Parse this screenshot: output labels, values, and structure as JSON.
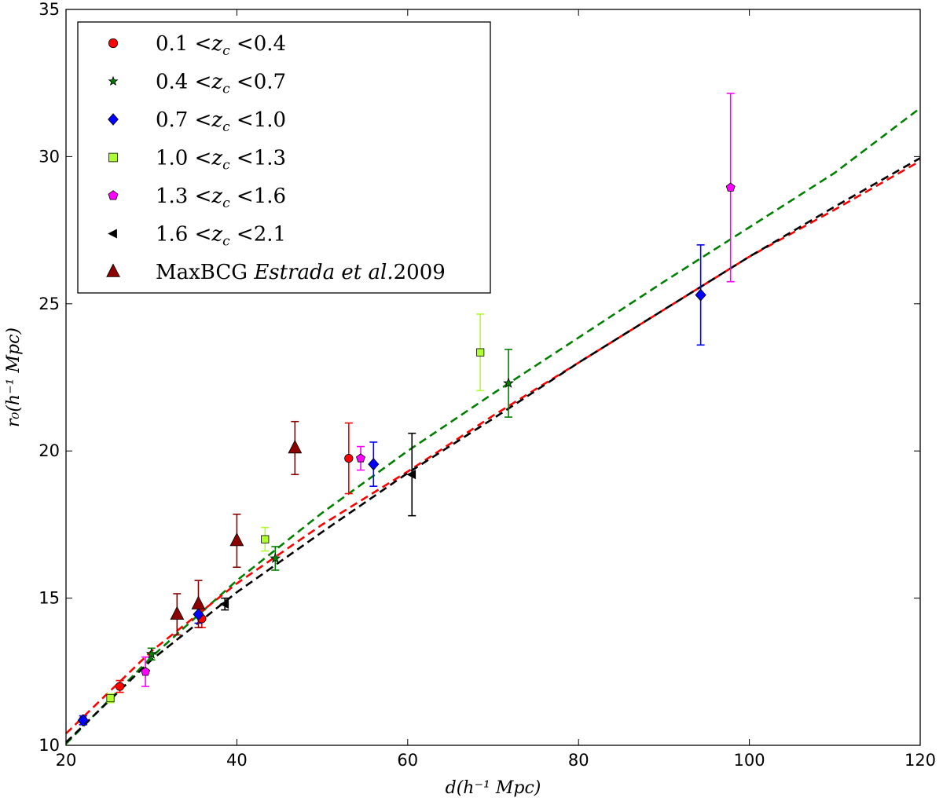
{
  "chart_data": {
    "type": "scatter",
    "title": "",
    "xlabel": "d(h⁻¹ Mpc)",
    "ylabel": "r₀(h⁻¹ Mpc)",
    "xlim": [
      20,
      120
    ],
    "ylim": [
      10,
      35
    ],
    "x_ticks": [
      20,
      40,
      60,
      80,
      100,
      120
    ],
    "y_ticks": [
      10,
      15,
      20,
      25,
      30,
      35
    ],
    "grid": false,
    "legend_position": "top-left",
    "series": [
      {
        "name": "0.1<z_c<0.4",
        "legend_parts": [
          "0.1 <",
          "z",
          "c",
          " <0.4"
        ],
        "marker": "circle",
        "color": "#ff0000",
        "points": [
          {
            "x": 22.0,
            "y": 10.85,
            "err": 0.15
          },
          {
            "x": 26.3,
            "y": 12.0,
            "err": 0.2
          },
          {
            "x": 35.9,
            "y": 14.3,
            "err": 0.3
          },
          {
            "x": 53.1,
            "y": 19.75,
            "err": 1.2
          }
        ]
      },
      {
        "name": "0.4<z_c<0.7",
        "legend_parts": [
          "0.4 <",
          "z",
          "c",
          " <0.7"
        ],
        "marker": "star",
        "color": "#008000",
        "points": [
          {
            "x": 30.0,
            "y": 13.1,
            "err": 0.2
          },
          {
            "x": 44.5,
            "y": 16.35,
            "err": 0.4
          },
          {
            "x": 71.8,
            "y": 22.3,
            "err": 1.15
          }
        ]
      },
      {
        "name": "0.7<z_c<1.0",
        "legend_parts": [
          "0.7 <",
          "z",
          "c",
          " <1.0"
        ],
        "marker": "diamond",
        "color": "#0000ff",
        "points": [
          {
            "x": 22.0,
            "y": 10.85,
            "err": 0.15
          },
          {
            "x": 35.5,
            "y": 14.45,
            "err": 0.3
          },
          {
            "x": 56.0,
            "y": 19.55,
            "err": 0.75
          },
          {
            "x": 94.3,
            "y": 25.3,
            "err": 1.7
          }
        ]
      },
      {
        "name": "1.0<z_c<1.3",
        "legend_parts": [
          "1.0 <",
          "z",
          "c",
          " <1.3"
        ],
        "marker": "square",
        "color": "#adff2f",
        "points": [
          {
            "x": 25.2,
            "y": 11.6,
            "err": 0.15
          },
          {
            "x": 43.3,
            "y": 17.0,
            "err": 0.4
          },
          {
            "x": 68.5,
            "y": 23.35,
            "err": 1.3
          }
        ]
      },
      {
        "name": "1.3<z_c<1.6",
        "legend_parts": [
          "1.3 <",
          "z",
          "c",
          " <1.6"
        ],
        "marker": "pentagon",
        "color": "#ff00ff",
        "points": [
          {
            "x": 29.3,
            "y": 12.5,
            "err": 0.5
          },
          {
            "x": 54.5,
            "y": 19.75,
            "err": 0.4
          },
          {
            "x": 97.8,
            "y": 28.95,
            "err": 3.2
          }
        ]
      },
      {
        "name": "1.6<z_c<2.1",
        "legend_parts": [
          "1.6 <",
          "z",
          "c",
          " <2.1"
        ],
        "marker": "triangle-left",
        "color": "#000000",
        "points": [
          {
            "x": 38.6,
            "y": 14.8,
            "err": 0.2
          },
          {
            "x": 60.5,
            "y": 19.2,
            "err": 1.4
          }
        ]
      },
      {
        "name": "MaxBCG Estrada et al.2009",
        "legend_parts": [
          "MaxBCG ",
          "Estrada et al.",
          "",
          "2009"
        ],
        "marker": "triangle-up",
        "color": "#8b0000",
        "points": [
          {
            "x": 33.0,
            "y": 14.45,
            "err": 0.7
          },
          {
            "x": 35.5,
            "y": 14.8,
            "err": 0.8
          },
          {
            "x": 40.0,
            "y": 16.95,
            "err": 0.9
          },
          {
            "x": 46.8,
            "y": 20.1,
            "err": 0.9
          }
        ]
      }
    ],
    "fit_lines": [
      {
        "name": "green-dashed-fit",
        "color": "#008000",
        "x": [
          20,
          30,
          40,
          50,
          60,
          70,
          80,
          90,
          100,
          110,
          120
        ],
        "y": [
          10.05,
          13.0,
          15.6,
          17.9,
          20.0,
          21.95,
          23.85,
          25.75,
          27.6,
          29.45,
          31.65
        ]
      },
      {
        "name": "red-dashed-fit",
        "color": "#ff0000",
        "x": [
          20,
          30,
          40,
          50,
          60,
          70,
          80,
          90,
          100,
          110,
          120
        ],
        "y": [
          10.4,
          13.2,
          15.5,
          17.5,
          19.3,
          21.2,
          23.0,
          24.8,
          26.6,
          28.2,
          29.85
        ]
      },
      {
        "name": "black-dashed-fit",
        "color": "#000000",
        "x": [
          20,
          30,
          40,
          50,
          60,
          70,
          80,
          90,
          100,
          110,
          120
        ],
        "y": [
          10.1,
          12.9,
          15.2,
          17.25,
          19.25,
          21.1,
          23.0,
          24.8,
          26.6,
          28.3,
          29.95
        ]
      }
    ]
  }
}
